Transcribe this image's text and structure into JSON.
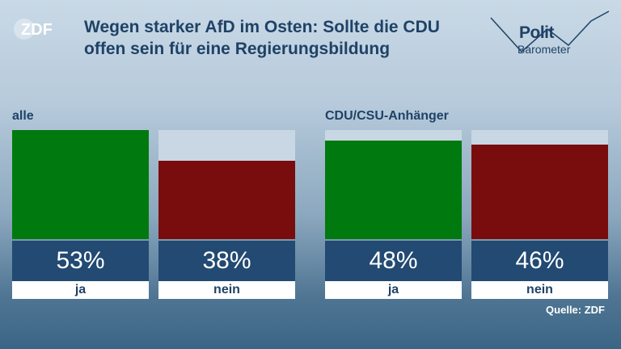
{
  "header": {
    "logo": "ZDF",
    "title": "Wegen starker AfD im Osten: Sollte die CDU offen sein für eine Regierungsbildung",
    "brand_line1": "Polit",
    "brand_line2": "Barometer"
  },
  "chart_data": {
    "type": "bar",
    "title": "Wegen starker AfD im Osten: Sollte die CDU offen sein für eine Regierungsbildung",
    "ylim": [
      0,
      53
    ],
    "groups": [
      {
        "name": "alle",
        "categories": [
          "ja",
          "nein"
        ],
        "values": [
          53,
          38
        ],
        "labels": [
          "53%",
          "38%"
        ],
        "colors": [
          "#007a0e",
          "#790d0d"
        ]
      },
      {
        "name": "CDU/CSU-Anhänger",
        "categories": [
          "ja",
          "nein"
        ],
        "values": [
          48,
          46
        ],
        "labels": [
          "48%",
          "46%"
        ],
        "colors": [
          "#007a0e",
          "#790d0d"
        ]
      }
    ],
    "source": "Quelle: ZDF"
  }
}
